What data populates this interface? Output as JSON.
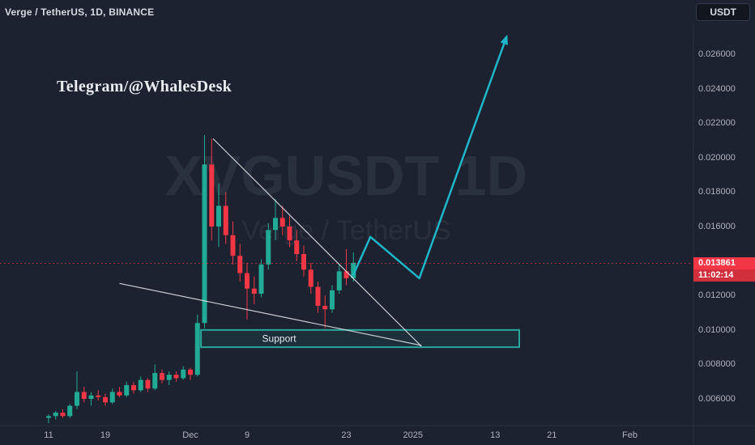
{
  "topbar": {
    "symbol_title": "Verge / TetherUS, 1D, BINANCE",
    "currency_button": "USDT"
  },
  "watermark": {
    "line1": "XVGUSDT 1D",
    "line2": "Verge / TetherUS"
  },
  "overlay": {
    "telegram": "Telegram/@WhalesDesk"
  },
  "price_label": {
    "price": "0.013861",
    "countdown": "11:02:14"
  },
  "colors": {
    "background": "#1c222f",
    "candle_up": "#22ab94",
    "candle_down": "#f23645",
    "projection": "#1fb6c9",
    "support_stroke": "#2aa79b",
    "trend_line": "#e3e6ec",
    "price_label_bg": "#f23645",
    "countdown_bg": "#d22f3d",
    "axis_text": "#aeb3bd",
    "separator": "#272d3b"
  },
  "chart_data": {
    "type": "candlestick",
    "symbol": "XVGUSDT",
    "name": "Verge / TetherUS",
    "interval": "1D",
    "exchange": "BINANCE",
    "current_price": 0.013861,
    "y_axis": {
      "side": "right",
      "ticks": [
        {
          "price": 0.026,
          "label": "0.026000"
        },
        {
          "price": 0.024,
          "label": "0.024000"
        },
        {
          "price": 0.022,
          "label": "0.022000"
        },
        {
          "price": 0.02,
          "label": "0.020000"
        },
        {
          "price": 0.018,
          "label": "0.018000"
        },
        {
          "price": 0.016,
          "label": "0.016000"
        },
        {
          "price": 0.012,
          "label": "0.012000"
        },
        {
          "price": 0.01,
          "label": "0.010000"
        },
        {
          "price": 0.008,
          "label": "0.008000"
        },
        {
          "price": 0.006,
          "label": "0.006000"
        }
      ],
      "range_top": 0.02774,
      "range_bottom": 0.0045
    },
    "x_axis": {
      "ticks": [
        {
          "day": 0,
          "label": "11"
        },
        {
          "day": 8,
          "label": "19"
        },
        {
          "day": 20,
          "label": "Dec"
        },
        {
          "day": 28,
          "label": "9"
        },
        {
          "day": 42,
          "label": "23"
        },
        {
          "day": 51.4,
          "label": "2025"
        },
        {
          "day": 63,
          "label": "13"
        },
        {
          "day": 71,
          "label": "21"
        },
        {
          "day": 82,
          "label": "Feb"
        }
      ],
      "day0": "Nov 11"
    },
    "ohlc_format": [
      "day",
      "open",
      "high",
      "low",
      "close"
    ],
    "candles": [
      [
        0,
        0.0049,
        0.0051,
        0.0046,
        0.005
      ],
      [
        1,
        0.005,
        0.0053,
        0.0048,
        0.0052
      ],
      [
        2,
        0.0052,
        0.0054,
        0.0049,
        0.005
      ],
      [
        3,
        0.005,
        0.0057,
        0.0049,
        0.0056
      ],
      [
        4,
        0.0056,
        0.0076,
        0.0054,
        0.0064
      ],
      [
        5,
        0.0064,
        0.0067,
        0.0058,
        0.006
      ],
      [
        6,
        0.006,
        0.0064,
        0.0056,
        0.0062
      ],
      [
        7,
        0.0062,
        0.0065,
        0.0059,
        0.0061
      ],
      [
        8,
        0.0061,
        0.0063,
        0.0056,
        0.0058
      ],
      [
        9,
        0.0058,
        0.0066,
        0.0057,
        0.0064
      ],
      [
        10,
        0.0064,
        0.0067,
        0.0061,
        0.0062
      ],
      [
        11,
        0.0062,
        0.007,
        0.0061,
        0.0068
      ],
      [
        12,
        0.0068,
        0.007,
        0.0063,
        0.0065
      ],
      [
        13,
        0.0065,
        0.0073,
        0.0064,
        0.0071
      ],
      [
        14,
        0.0071,
        0.0072,
        0.0064,
        0.0066
      ],
      [
        15,
        0.0066,
        0.008,
        0.0065,
        0.0075
      ],
      [
        16,
        0.0075,
        0.0077,
        0.0069,
        0.0071
      ],
      [
        17,
        0.0071,
        0.0076,
        0.0068,
        0.0074
      ],
      [
        18,
        0.0074,
        0.0076,
        0.007,
        0.0072
      ],
      [
        19,
        0.0072,
        0.0079,
        0.0071,
        0.0077
      ],
      [
        20,
        0.0077,
        0.0078,
        0.0071,
        0.0074
      ],
      [
        21,
        0.0074,
        0.0109,
        0.0073,
        0.0104
      ],
      [
        22,
        0.0104,
        0.0213,
        0.0101,
        0.0196
      ],
      [
        23,
        0.0196,
        0.0211,
        0.0152,
        0.016
      ],
      [
        24,
        0.016,
        0.0185,
        0.0148,
        0.0172
      ],
      [
        25,
        0.0172,
        0.018,
        0.015,
        0.0155
      ],
      [
        26,
        0.0155,
        0.0163,
        0.0138,
        0.0143
      ],
      [
        27,
        0.0143,
        0.015,
        0.0128,
        0.0133
      ],
      [
        28,
        0.0133,
        0.0139,
        0.0106,
        0.0124
      ],
      [
        29,
        0.0124,
        0.0131,
        0.0115,
        0.0121
      ],
      [
        30,
        0.0121,
        0.0141,
        0.0119,
        0.0138
      ],
      [
        31,
        0.0138,
        0.0162,
        0.0135,
        0.0158
      ],
      [
        32,
        0.0158,
        0.0176,
        0.0152,
        0.0165
      ],
      [
        33,
        0.0165,
        0.0172,
        0.0155,
        0.016
      ],
      [
        34,
        0.016,
        0.0166,
        0.0148,
        0.0152
      ],
      [
        35,
        0.0152,
        0.0158,
        0.014,
        0.0144
      ],
      [
        36,
        0.0144,
        0.0149,
        0.0131,
        0.0135
      ],
      [
        37,
        0.0135,
        0.0139,
        0.0121,
        0.0125
      ],
      [
        38,
        0.0125,
        0.0128,
        0.011,
        0.0114
      ],
      [
        39,
        0.0114,
        0.012,
        0.0101,
        0.0112
      ],
      [
        40,
        0.0112,
        0.0126,
        0.011,
        0.0123
      ],
      [
        41,
        0.0123,
        0.0138,
        0.0121,
        0.0134
      ],
      [
        42,
        0.0134,
        0.0147,
        0.0126,
        0.013
      ],
      [
        43,
        0.013,
        0.0145,
        0.0128,
        0.0139
      ]
    ],
    "drawings": {
      "support_zone": {
        "label": "Support",
        "day_start": 21.5,
        "day_end": 66.4,
        "price_low": 0.009,
        "price_high": 0.01
      },
      "trend_lines": [
        {
          "d1": 23.2,
          "p1": 0.0211,
          "d2": 52.6,
          "p2": 0.00905
        },
        {
          "d1": 10.0,
          "p1": 0.0127,
          "d2": 52.6,
          "p2": 0.0091
        }
      ],
      "projection_arrow": {
        "points": [
          [
            43.0,
            0.0132
          ],
          [
            45.4,
            0.0154
          ],
          [
            52.3,
            0.013
          ],
          [
            64.6,
            0.027
          ]
        ]
      },
      "current_price_line": 0.013861
    },
    "grid": "off",
    "legend": "none"
  }
}
